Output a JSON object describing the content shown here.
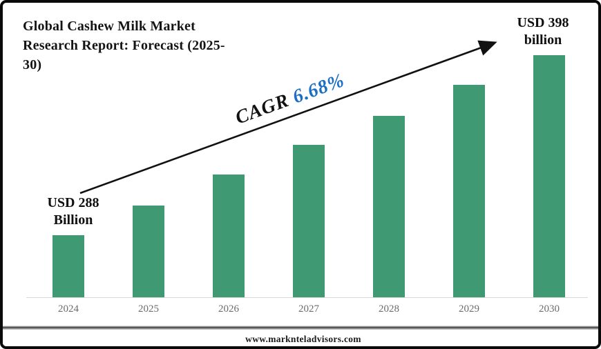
{
  "header": {
    "title_lines": [
      "Global Cashew Milk Market",
      "Research Report: Forecast (2025-",
      "30)"
    ]
  },
  "annotation": {
    "cagr_prefix": "CAGR ",
    "cagr_value": "6.68%",
    "cagr_value_color": "#1b6ec4",
    "arrow_color": "#111111"
  },
  "footer": {
    "url": "www.marknteladvisors.com"
  },
  "chart_data": {
    "type": "bar",
    "title": "Global Cashew Milk Market Research Report: Forecast (2025-30)",
    "categories": [
      "2024",
      "2025",
      "2026",
      "2027",
      "2028",
      "2029",
      "2030"
    ],
    "values": [
      288,
      306,
      325,
      343,
      361,
      380,
      398
    ],
    "unit": "USD billion",
    "ylim": [
      250,
      430
    ],
    "bar_color": "#3f9a73",
    "grid": false,
    "legend": false,
    "xlabel": "",
    "ylabel": "",
    "bar_labels": [
      {
        "index": 0,
        "lines": [
          "USD 288",
          "Billion"
        ]
      },
      {
        "index": 6,
        "lines": [
          "USD 398",
          "billion"
        ]
      }
    ],
    "annotation": "CAGR 6.68%"
  }
}
